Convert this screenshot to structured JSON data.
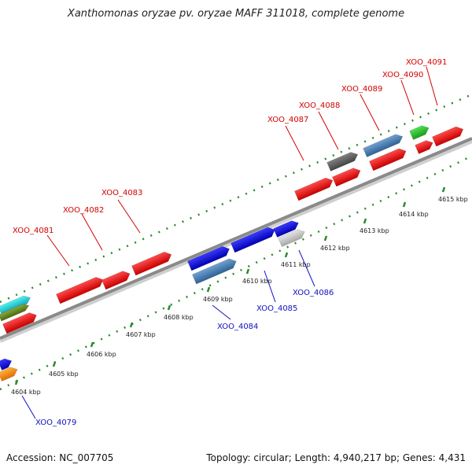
{
  "title": "Xanthomonas oryzae pv. oryzae MAFF 311018, complete genome",
  "footer": {
    "accession": "Accession: NC_007705",
    "summary": "Topology: circular; Length: 4,940,217 bp; Genes: 4,431"
  },
  "colors": {
    "forward_label": "#d40000",
    "reverse_label": "#1010c0",
    "tick_green": "#2a8a2a",
    "axis_gray": "#8a8a8a"
  },
  "scale_labels": [
    "4604 kbp",
    "4605 kbp",
    "4606 kbp",
    "4607 kbp",
    "4608 kbp",
    "4609 kbp",
    "4610 kbp",
    "4611 kbp",
    "4612 kbp",
    "4613 kbp",
    "4614 kbp",
    "4615 kbp"
  ],
  "forward_gene_labels": [
    "XOO_4081",
    "XOO_4082",
    "XOO_4083",
    "XOO_4087",
    "XOO_4088",
    "XOO_4089",
    "XOO_4090",
    "XOO_4091"
  ],
  "reverse_gene_labels": [
    "XOO_4079",
    "XOO_4084",
    "XOO_4085",
    "XOO_4086"
  ]
}
